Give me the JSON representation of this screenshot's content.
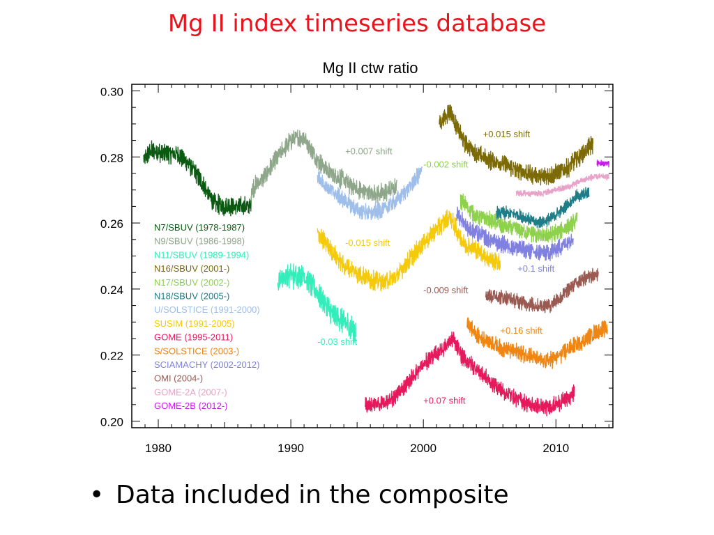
{
  "slide": {
    "title": "Mg II index timeseries database",
    "title_color": "#e8141c",
    "bullet_symbol": "•",
    "bullet_text": "Data included in the composite"
  },
  "chart_data": {
    "type": "line",
    "title": "Mg II ctw ratio",
    "xlabel": "",
    "ylabel": "",
    "xlim": [
      1978,
      2014.3
    ],
    "ylim": [
      0.198,
      0.302
    ],
    "x_ticks": [
      1980,
      1990,
      2000,
      2010
    ],
    "x_tick_labels": [
      "1980",
      "1990",
      "2000",
      "2010"
    ],
    "y_ticks": [
      0.2,
      0.22,
      0.24,
      0.26,
      0.28,
      0.3
    ],
    "y_tick_labels": [
      "0.20",
      "0.22",
      "0.24",
      "0.26",
      "0.28",
      "0.30"
    ],
    "grid": false,
    "legend_position": "middle-left",
    "series": [
      {
        "name": "N7/SBUV (1978-1987)",
        "color": "#0b5a12",
        "noise": 0.0045,
        "points": [
          [
            1978.9,
            0.279
          ],
          [
            1979.5,
            0.282
          ],
          [
            1980.5,
            0.281
          ],
          [
            1981.5,
            0.281
          ],
          [
            1982.5,
            0.277
          ],
          [
            1983.3,
            0.272
          ],
          [
            1984.2,
            0.266
          ],
          [
            1985.0,
            0.265
          ],
          [
            1986.0,
            0.265
          ],
          [
            1987.0,
            0.265
          ]
        ]
      },
      {
        "name": "N9/SBUV (1986-1998)",
        "color": "#8ea68a",
        "noise": 0.0045,
        "points": [
          [
            1987.0,
            0.27
          ],
          [
            1988.0,
            0.274
          ],
          [
            1989.0,
            0.28
          ],
          [
            1990.0,
            0.285
          ],
          [
            1991.0,
            0.286
          ],
          [
            1992.0,
            0.279
          ],
          [
            1993.0,
            0.275
          ],
          [
            1994.0,
            0.273
          ],
          [
            1995.0,
            0.27
          ],
          [
            1996.0,
            0.269
          ],
          [
            1997.0,
            0.269
          ],
          [
            1998.0,
            0.271
          ]
        ]
      },
      {
        "name": "N11/SBUV (1989-1994)",
        "color": "#33eebb",
        "noise": 0.006,
        "points": [
          [
            1989.0,
            0.243
          ],
          [
            1990.0,
            0.244
          ],
          [
            1991.0,
            0.244
          ],
          [
            1992.0,
            0.239
          ],
          [
            1993.0,
            0.233
          ],
          [
            1994.0,
            0.23
          ],
          [
            1994.9,
            0.227
          ]
        ]
      },
      {
        "name": "N16/SBUV (2001-)",
        "color": "#7b6a05",
        "noise": 0.0045,
        "points": [
          [
            2001.2,
            0.29
          ],
          [
            2002.0,
            0.294
          ],
          [
            2003.0,
            0.285
          ],
          [
            2004.0,
            0.281
          ],
          [
            2005.0,
            0.279
          ],
          [
            2006.0,
            0.278
          ],
          [
            2007.0,
            0.276
          ],
          [
            2008.0,
            0.275
          ],
          [
            2009.0,
            0.274
          ],
          [
            2010.0,
            0.275
          ],
          [
            2011.0,
            0.277
          ],
          [
            2012.0,
            0.281
          ],
          [
            2012.8,
            0.284
          ]
        ]
      },
      {
        "name": "N17/SBUV (2002-)",
        "color": "#8ed14a",
        "noise": 0.004,
        "points": [
          [
            2002.8,
            0.267
          ],
          [
            2004.0,
            0.262
          ],
          [
            2005.0,
            0.261
          ],
          [
            2006.0,
            0.259
          ],
          [
            2007.0,
            0.258
          ],
          [
            2008.0,
            0.257
          ],
          [
            2009.0,
            0.256
          ],
          [
            2010.0,
            0.257
          ],
          [
            2011.0,
            0.259
          ],
          [
            2011.6,
            0.261
          ]
        ]
      },
      {
        "name": "N18/SBUV (2005-)",
        "color": "#1e7d87",
        "noise": 0.003,
        "points": [
          [
            2005.5,
            0.263
          ],
          [
            2006.5,
            0.263
          ],
          [
            2007.5,
            0.262
          ],
          [
            2008.5,
            0.26
          ],
          [
            2009.5,
            0.261
          ],
          [
            2010.5,
            0.264
          ],
          [
            2011.5,
            0.268
          ],
          [
            2012.5,
            0.269
          ]
        ]
      },
      {
        "name": "U/SOLSTICE (1991-2000)",
        "color": "#9fbfea",
        "noise": 0.004,
        "points": [
          [
            1992.0,
            0.274
          ],
          [
            1993.0,
            0.27
          ],
          [
            1994.0,
            0.267
          ],
          [
            1995.0,
            0.264
          ],
          [
            1996.0,
            0.263
          ],
          [
            1997.0,
            0.264
          ],
          [
            1998.0,
            0.267
          ],
          [
            1999.0,
            0.271
          ],
          [
            1999.9,
            0.276
          ]
        ]
      },
      {
        "name": "SUSIM (1991-2005)",
        "color": "#f5ca0a",
        "noise": 0.0045,
        "points": [
          [
            1992.0,
            0.257
          ],
          [
            1993.0,
            0.252
          ],
          [
            1994.0,
            0.247
          ],
          [
            1995.0,
            0.245
          ],
          [
            1996.0,
            0.243
          ],
          [
            1997.0,
            0.242
          ],
          [
            1998.0,
            0.244
          ],
          [
            1999.0,
            0.249
          ],
          [
            2000.0,
            0.254
          ],
          [
            2001.0,
            0.258
          ],
          [
            2002.0,
            0.262
          ],
          [
            2003.0,
            0.254
          ],
          [
            2004.0,
            0.252
          ],
          [
            2005.0,
            0.249
          ],
          [
            2005.8,
            0.248
          ]
        ]
      },
      {
        "name": "GOME (1995-2011)",
        "color": "#e6195c",
        "noise": 0.004,
        "points": [
          [
            1995.6,
            0.205
          ],
          [
            1996.5,
            0.205
          ],
          [
            1997.5,
            0.206
          ],
          [
            1998.5,
            0.21
          ],
          [
            1999.5,
            0.215
          ],
          [
            2000.5,
            0.219
          ],
          [
            2001.5,
            0.222
          ],
          [
            2002.2,
            0.225
          ],
          [
            2003.0,
            0.219
          ],
          [
            2004.0,
            0.216
          ],
          [
            2005.0,
            0.212
          ],
          [
            2006.0,
            0.209
          ],
          [
            2007.0,
            0.207
          ],
          [
            2008.0,
            0.205
          ],
          [
            2009.0,
            0.204
          ],
          [
            2010.0,
            0.205
          ],
          [
            2011.0,
            0.207
          ],
          [
            2011.4,
            0.209
          ]
        ]
      },
      {
        "name": "S/SOLSTICE (2003-)",
        "color": "#f08512",
        "noise": 0.004,
        "points": [
          [
            2003.3,
            0.23
          ],
          [
            2004.0,
            0.226
          ],
          [
            2005.0,
            0.224
          ],
          [
            2006.0,
            0.222
          ],
          [
            2007.0,
            0.221
          ],
          [
            2008.0,
            0.22
          ],
          [
            2009.0,
            0.218
          ],
          [
            2010.0,
            0.219
          ],
          [
            2011.0,
            0.222
          ],
          [
            2012.0,
            0.224
          ],
          [
            2013.0,
            0.227
          ],
          [
            2013.9,
            0.228
          ]
        ]
      },
      {
        "name": "SCIAMACHY (2002-2012)",
        "color": "#8080e0",
        "noise": 0.004,
        "points": [
          [
            2002.5,
            0.263
          ],
          [
            2003.5,
            0.258
          ],
          [
            2004.5,
            0.256
          ],
          [
            2005.5,
            0.254
          ],
          [
            2006.5,
            0.253
          ],
          [
            2007.5,
            0.252
          ],
          [
            2008.5,
            0.251
          ],
          [
            2009.5,
            0.251
          ],
          [
            2010.5,
            0.253
          ],
          [
            2011.3,
            0.256
          ]
        ]
      },
      {
        "name": "OMI (2004-)",
        "color": "#9a5a52",
        "noise": 0.0035,
        "points": [
          [
            2004.7,
            0.238
          ],
          [
            2005.5,
            0.238
          ],
          [
            2006.5,
            0.237
          ],
          [
            2007.5,
            0.236
          ],
          [
            2008.5,
            0.235
          ],
          [
            2009.5,
            0.235
          ],
          [
            2010.5,
            0.238
          ],
          [
            2011.5,
            0.242
          ],
          [
            2012.5,
            0.244
          ],
          [
            2013.2,
            0.244
          ]
        ]
      },
      {
        "name": "GOME-2A (2007-)",
        "color": "#e8a3c8",
        "noise": 0.0015,
        "points": [
          [
            2007.0,
            0.269
          ],
          [
            2008.0,
            0.269
          ],
          [
            2009.0,
            0.269
          ],
          [
            2010.0,
            0.27
          ],
          [
            2011.0,
            0.271
          ],
          [
            2012.0,
            0.273
          ],
          [
            2013.0,
            0.274
          ],
          [
            2014.0,
            0.274
          ]
        ]
      },
      {
        "name": "GOME-2B (2012-)",
        "color": "#c41ee8",
        "noise": 0.0015,
        "points": [
          [
            2013.1,
            0.278
          ],
          [
            2013.5,
            0.278
          ],
          [
            2014.0,
            0.278
          ]
        ]
      }
    ],
    "annotations": [
      {
        "text": "+0.007 shift",
        "x": 1994.1,
        "y": 0.2808,
        "color": "#8ea68a"
      },
      {
        "text": "-0.002 shift",
        "x": 2000.0,
        "y": 0.2768,
        "color": "#8ed14a"
      },
      {
        "text": "+0.015 shift",
        "x": 2004.5,
        "y": 0.286,
        "color": "#7b6a05"
      },
      {
        "text": "-0.015 shift",
        "x": 1994.1,
        "y": 0.2531,
        "color": "#f5ca0a"
      },
      {
        "text": "+0.1 shift",
        "x": 2007.1,
        "y": 0.2453,
        "color": "#8080e0"
      },
      {
        "text": "-0.009 shift",
        "x": 2000.0,
        "y": 0.2387,
        "color": "#9a5a52"
      },
      {
        "text": "-0.03 shift",
        "x": 1992.0,
        "y": 0.2231,
        "color": "#33eebb"
      },
      {
        "text": "+0.16 shift",
        "x": 2005.8,
        "y": 0.2265,
        "color": "#f08512"
      },
      {
        "text": "+0.07 shift",
        "x": 2000.0,
        "y": 0.2053,
        "color": "#e6195c"
      }
    ]
  }
}
